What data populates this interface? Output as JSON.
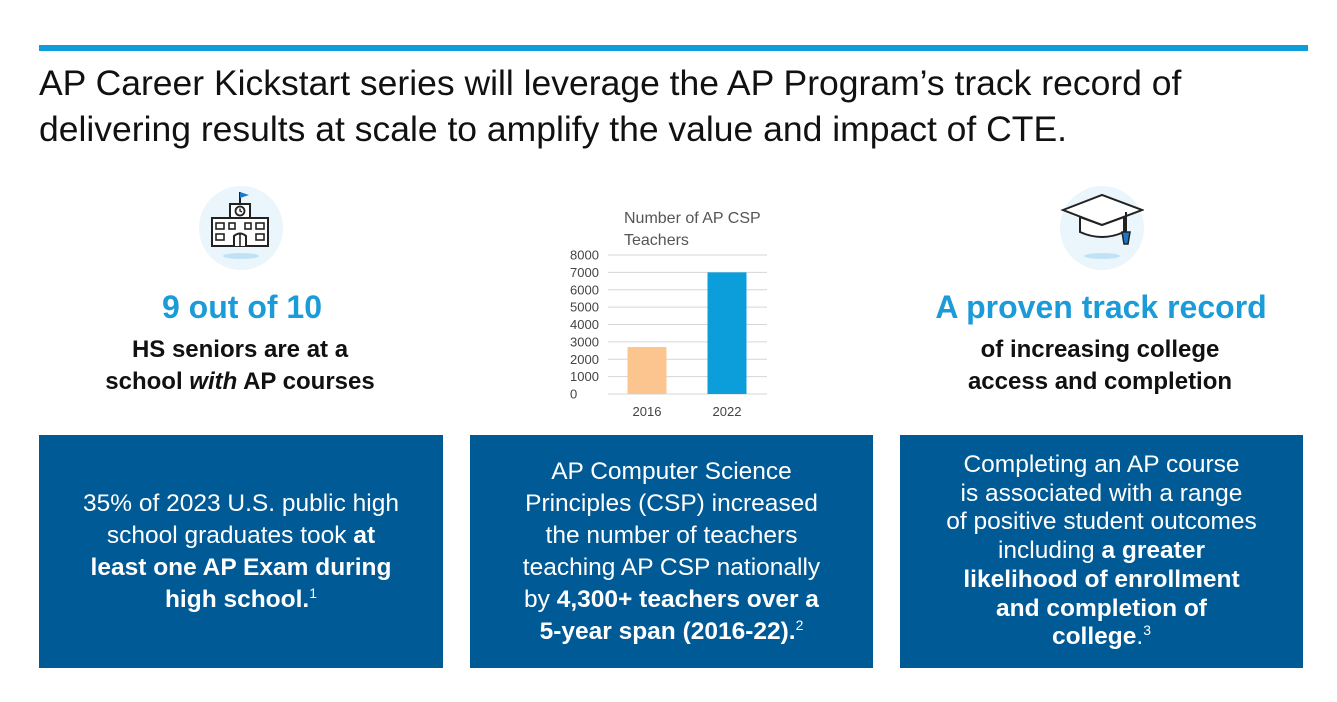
{
  "headline": {
    "line1": "AP Career Kickstart series will leverage the AP Program’s track record of",
    "line2": "delivering results at scale to amplify the value and impact of CTE."
  },
  "icons": {
    "left": "school-building-icon",
    "right": "graduation-cap-icon"
  },
  "colors": {
    "accent": "#0d9ddb",
    "stat_blue": "#1b9bd8",
    "box_blue": "#005a96",
    "bar_2016": "#fcc590",
    "bar_2022": "#0b9edb"
  },
  "stat_left": {
    "title": "9 out of 10",
    "line1": "HS seniors are at a",
    "line2_pre": "school ",
    "line2_em": "with",
    "line2_post": " AP courses"
  },
  "stat_right": {
    "title": "A proven track record",
    "line1": "of increasing college",
    "line2": "access and completion"
  },
  "chart_data": {
    "type": "bar",
    "title_line1": "Number of AP CSP",
    "title_line2": "Teachers",
    "categories": [
      "2016",
      "2022"
    ],
    "values": [
      2700,
      7000
    ],
    "ylim": [
      0,
      8000
    ],
    "yticks": [
      0,
      1000,
      2000,
      3000,
      4000,
      5000,
      6000,
      7000,
      8000
    ],
    "grid": true,
    "xlabel": "",
    "ylabel": ""
  },
  "box1": {
    "l1": "35% of 2023 U.S. public high",
    "l2_pre": "school graduates took ",
    "l2_bold": "at",
    "l3_bold": "least one AP Exam during",
    "l4_bold": "high school.",
    "sup": "1"
  },
  "box2": {
    "l1": "AP Computer Science",
    "l2": "Principles (CSP) increased",
    "l3": "the number of teachers",
    "l4": "teaching AP CSP nationally",
    "l5_pre": "by ",
    "l5_bold": "4,300+ teachers over a",
    "l6_bold": "5-year span (2016-22).",
    "sup": "2"
  },
  "box3": {
    "l1": "Completing an AP course",
    "l2": "is associated with a range",
    "l3": "of positive student outcomes",
    "l4_pre": "including ",
    "l4_bold": "a greater",
    "l5_bold": "likelihood of enrollment",
    "l6_bold": "and completion of",
    "l7_bold": "college",
    "l7_post": ".",
    "sup": "3"
  }
}
